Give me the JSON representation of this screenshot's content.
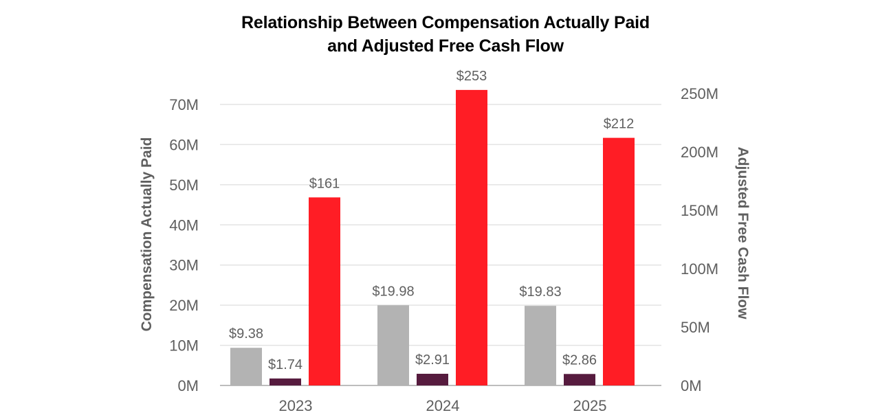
{
  "chart_data": {
    "type": "bar",
    "title_line1": "Relationship Between Compensation Actually Paid",
    "title_line2": "and Adjusted Free Cash Flow",
    "categories": [
      "2023",
      "2024",
      "2025"
    ],
    "ylabel": "Compensation Actually Paid",
    "y2label": "Adjusted Free Cash Flow",
    "ylim": [
      0,
      70
    ],
    "y2lim": [
      0,
      250
    ],
    "y_ticks": [
      "0M",
      "10M",
      "20M",
      "30M",
      "40M",
      "50M",
      "60M",
      "70M"
    ],
    "y2_ticks": [
      "0M",
      "50M",
      "100M",
      "150M",
      "200M",
      "250M"
    ],
    "grid": true,
    "series": [
      {
        "axis": "left",
        "color": "#b3b3b3",
        "values": [
          9.38,
          19.98,
          19.83
        ],
        "labels": [
          "$9.38",
          "$19.98",
          "$19.83"
        ]
      },
      {
        "axis": "left",
        "color": "#561b3e",
        "values": [
          1.74,
          2.91,
          2.86
        ],
        "labels": [
          "$1.74",
          "$2.91",
          "$2.86"
        ]
      },
      {
        "axis": "right",
        "color": "#ff1d25",
        "values": [
          161,
          253,
          212
        ],
        "labels": [
          "$161",
          "$253",
          "$212"
        ]
      }
    ]
  }
}
